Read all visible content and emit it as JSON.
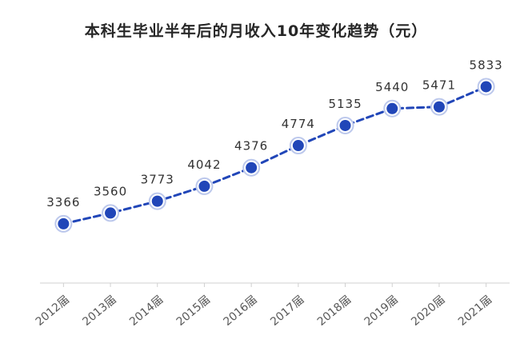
{
  "chart_data": {
    "type": "line",
    "title": "本科生毕业半年后的月收入10年变化趋势（元）",
    "categories": [
      "2012届",
      "2013届",
      "2014届",
      "2015届",
      "2016届",
      "2017届",
      "2018届",
      "2019届",
      "2020届",
      "2021届"
    ],
    "series": [
      {
        "values": [
          3366,
          3560,
          3773,
          4042,
          4376,
          4774,
          5135,
          5440,
          5471,
          5833
        ]
      }
    ],
    "xlabel": "",
    "ylabel": "",
    "ylim": [
      2300,
      6300
    ],
    "grid": false,
    "legend": "none",
    "line_style": "dashed",
    "colors": {
      "line": "#2146b8",
      "marker": "#2146b8",
      "marker_ring": "#bcc8ec",
      "axis": "#d0d0d0",
      "label": "#333333",
      "tick": "#595959"
    }
  }
}
